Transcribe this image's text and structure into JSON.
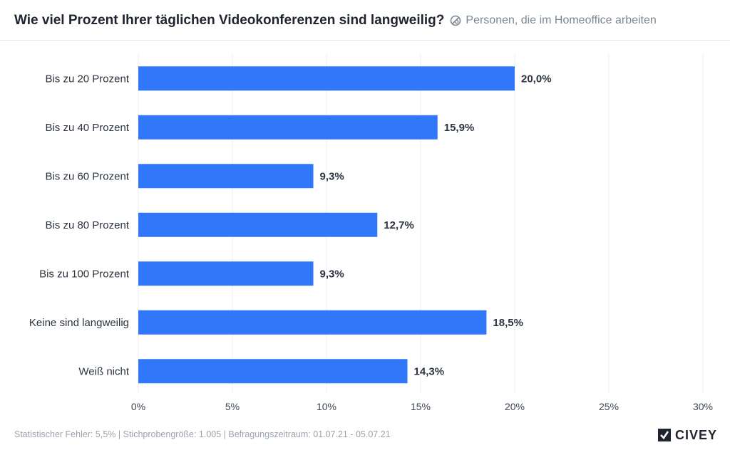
{
  "header": {
    "title": "Wie viel Prozent Ihrer täglichen Videokonferenzen sind langweilig?",
    "filter_label": "Personen, die im Homeoffice arbeiten",
    "filter_icon": "filter-circle-icon"
  },
  "chart_data": {
    "type": "bar",
    "orientation": "horizontal",
    "categories": [
      "Bis zu 20 Prozent",
      "Bis zu 40 Prozent",
      "Bis zu 60 Prozent",
      "Bis zu 80 Prozent",
      "Bis zu 100 Prozent",
      "Keine sind langweilig",
      "Weiß nicht"
    ],
    "values": [
      20.0,
      15.9,
      9.3,
      12.7,
      9.3,
      18.5,
      14.3
    ],
    "value_labels": [
      "20,0%",
      "15,9%",
      "9,3%",
      "12,7%",
      "9,3%",
      "18,5%",
      "14,3%"
    ],
    "xlim": [
      0,
      30
    ],
    "xticks": [
      0,
      5,
      10,
      15,
      20,
      25,
      30
    ],
    "xtick_labels": [
      "0%",
      "5%",
      "10%",
      "15%",
      "20%",
      "25%",
      "30%"
    ],
    "grid": true,
    "bar_color": "#3077fa"
  },
  "footer": {
    "text": "Statistischer Fehler: 5,5% | Stichprobengröße: 1.005 | Befragungszeitraum: 01.07.21 - 05.07.21"
  },
  "brand": {
    "name": "CIVEY",
    "logo_icon": "civey-logo-icon"
  }
}
